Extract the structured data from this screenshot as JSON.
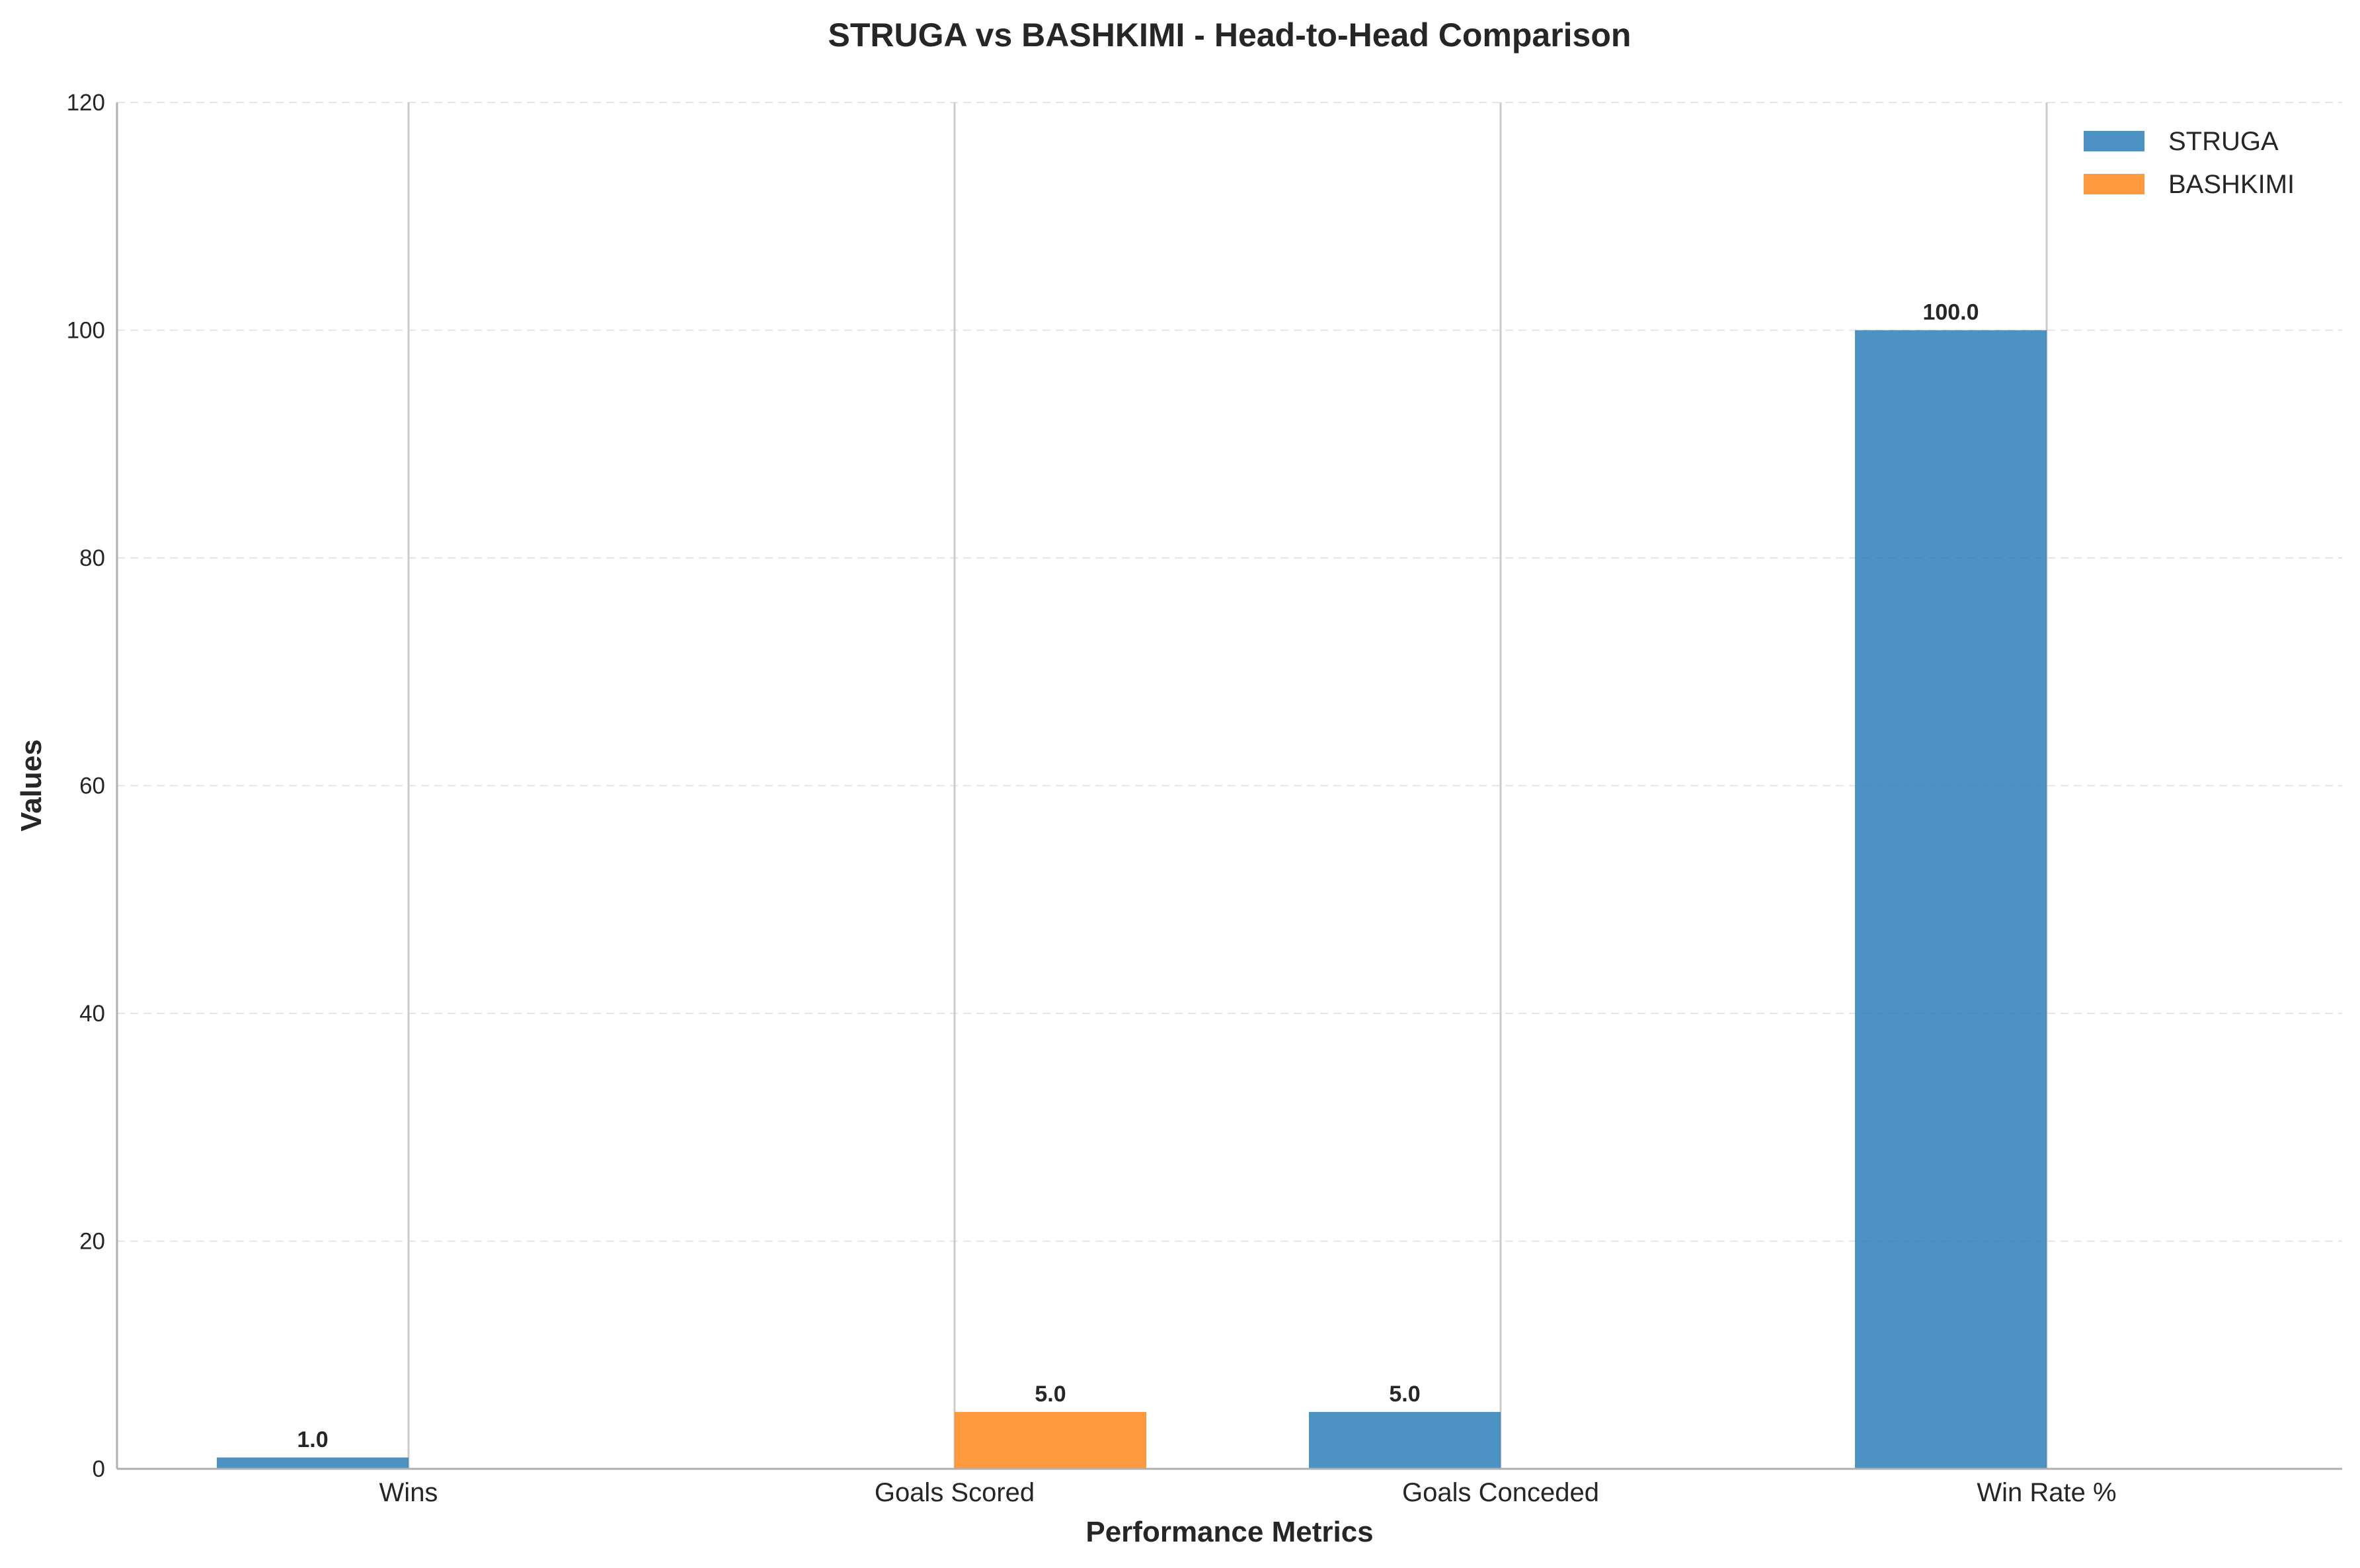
{
  "chart_data": {
    "type": "bar",
    "title": "STRUGA vs BASHKIMI - Head-to-Head Comparison",
    "xlabel": "Performance Metrics",
    "ylabel": "Values",
    "categories": [
      "Wins",
      "Goals Scored",
      "Goals Conceded",
      "Win Rate %"
    ],
    "series": [
      {
        "name": "STRUGA",
        "color": "#1f77b4",
        "values": [
          1.0,
          0.0,
          5.0,
          100.0
        ],
        "labels": [
          "1.0",
          "",
          "5.0",
          "100.0"
        ]
      },
      {
        "name": "BASHKIMI",
        "color": "#ff7f0e",
        "values": [
          0.0,
          5.0,
          0.0,
          0.0
        ],
        "labels": [
          "",
          "5.0",
          "",
          ""
        ]
      }
    ],
    "ylim": [
      0,
      120
    ],
    "yticks": [
      0,
      20,
      40,
      60,
      80,
      100,
      120
    ],
    "grid": "horizontal-dashed",
    "legend_position": "top-right"
  }
}
